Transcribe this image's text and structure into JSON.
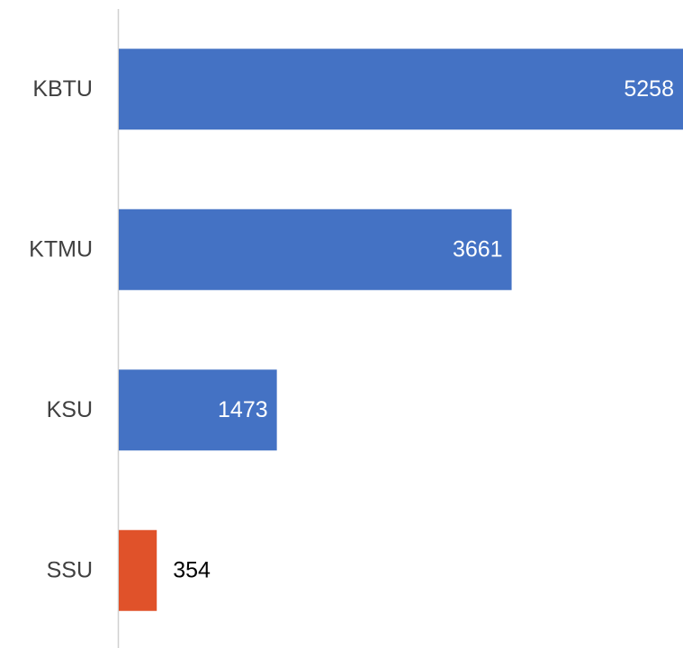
{
  "chart_data": {
    "type": "bar",
    "orientation": "horizontal",
    "categories": [
      "KBTU",
      "KTMU",
      "KSU",
      "SSU"
    ],
    "values": [
      5258,
      3661,
      1473,
      354
    ],
    "colors": [
      "#4472c4",
      "#4472c4",
      "#4472c4",
      "#e0522a"
    ]
  }
}
